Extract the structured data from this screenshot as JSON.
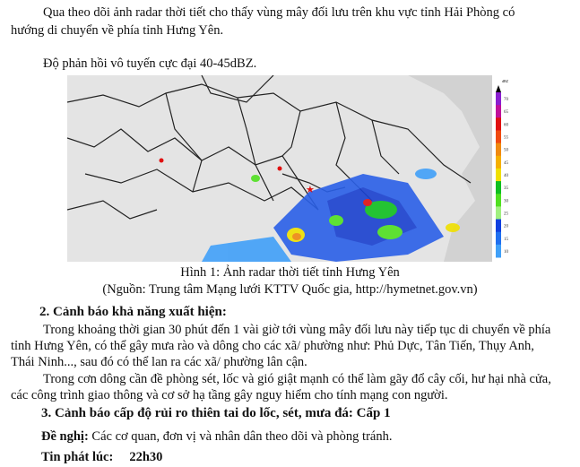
{
  "intro": {
    "line1": "Qua theo dõi ảnh radar thời tiết cho thấy vùng mây đối lưu trên khu vực tỉnh Hải Phòng có",
    "line2": "hướng di chuyển về phía tỉnh Hưng Yên.",
    "reflectivity": "Độ phản hồi vô tuyến cực đại 40-45dBZ."
  },
  "figure": {
    "caption": "Hình 1: Ảnh radar thời tiết tỉnh Hưng Yên",
    "source": "(Nguồn: Trung tâm Mạng lưới KTTV Quốc gia, http://hymetnet.gov.vn)",
    "legend_unit": "dBZ",
    "legend_values": [
      "70",
      "65",
      "60",
      "55",
      "50",
      "45",
      "40",
      "35",
      "30",
      "25",
      "20",
      "15",
      "10"
    ],
    "legend_colors": [
      "#8a1fd0",
      "#c0109a",
      "#e01010",
      "#f04a10",
      "#f08a10",
      "#f5b000",
      "#f0e000",
      "#10c020",
      "#50e020",
      "#a0f080",
      "#1040e0",
      "#2070f0",
      "#40a0f8"
    ]
  },
  "section2": {
    "heading": "2. Cảnh báo khả năng xuất hiện:",
    "p1_l1": "Trong khoảng thời gian 30 phút  đến 1 vài giờ tới vùng mây đối lưu này tiếp tục di chuyển về phía",
    "p1_l2": "tỉnh Hưng Yên, có thể gây mưa rào và dông cho các xã/ phường như: Phủ Dực, Tân Tiến, Thụy Anh,",
    "p1_l3": "Thái Ninh..., sau đó có thể lan ra các xã/ phường lân cận.",
    "p2_l1": "Trong cơn dông cần đề phòng sét, lốc và gió giật mạnh có thể làm gãy đổ cây cối, hư hại nhà cửa,",
    "p2_l2": "các công trình giao thông và cơ sở hạ tầng gây nguy hiểm cho tính mạng con người."
  },
  "section3": {
    "heading": "3. Cảnh báo cấp độ rủi ro thiên tai do lốc, sét, mưa đá: Cấp 1",
    "recommend_label": "Đề nghị:",
    "recommend_text": " Các cơ quan, đơn vị và nhân dân theo dõi và phòng tránh.",
    "issued_label": "Tin phát lúc:",
    "issued_time": "22h30"
  }
}
